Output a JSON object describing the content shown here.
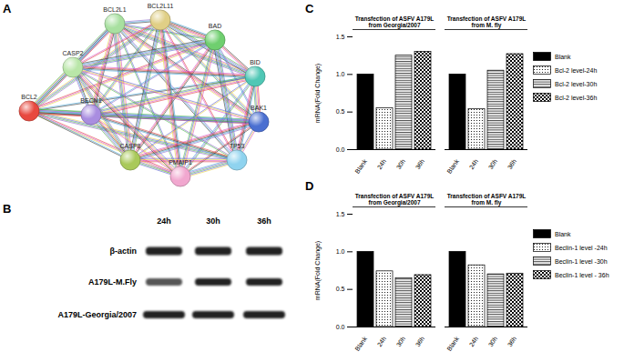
{
  "panels": {
    "A": {
      "letter": "A",
      "nodes": [
        {
          "label": "BCL2",
          "color": "#e8493f"
        },
        {
          "label": "BCL2L1",
          "color": "#a8e0a0"
        },
        {
          "label": "BCL2L11",
          "color": "#e0cf86"
        },
        {
          "label": "BAD",
          "color": "#6fcf6f"
        },
        {
          "label": "BID",
          "color": "#4fc7b5"
        },
        {
          "label": "BAK1",
          "color": "#4a6fd1"
        },
        {
          "label": "TP53",
          "color": "#8fd3ef"
        },
        {
          "label": "PMAIP1",
          "color": "#f1a7cf"
        },
        {
          "label": "CASP8",
          "color": "#a9c95a"
        },
        {
          "label": "BECN1",
          "color": "#a98de0"
        },
        {
          "label": "CASP2",
          "color": "#b9e6a8"
        }
      ],
      "edges": {
        "BCL2": [
          "BCL2L1",
          "BCL2L11",
          "BAD",
          "BID",
          "BAK1",
          "TP53",
          "PMAIP1",
          "CASP8",
          "BECN1",
          "CASP2"
        ],
        "BCL2L1": [
          "BCL2L11",
          "BAD",
          "BID",
          "BAK1",
          "TP53",
          "PMAIP1",
          "CASP8",
          "BECN1",
          "CASP2"
        ],
        "BCL2L11": [
          "BAD",
          "BID",
          "BAK1",
          "TP53",
          "PMAIP1",
          "CASP8",
          "BECN1",
          "CASP2"
        ],
        "BAD": [
          "BID",
          "BAK1",
          "TP53",
          "PMAIP1",
          "CASP8",
          "BECN1",
          "CASP2"
        ],
        "BID": [
          "BAK1",
          "TP53",
          "PMAIP1",
          "CASP8",
          "BECN1",
          "CASP2"
        ],
        "BAK1": [
          "TP53",
          "PMAIP1",
          "CASP8",
          "BECN1",
          "CASP2"
        ],
        "TP53": [
          "PMAIP1",
          "CASP8",
          "BECN1",
          "CASP2"
        ],
        "PMAIP1": [
          "CASP8",
          "BECN1",
          "CASP2"
        ],
        "CASP8": [
          "BECN1",
          "CASP2"
        ],
        "BECN1": [
          "CASP2"
        ]
      }
    },
    "B": {
      "letter": "B",
      "lanes": [
        "24h",
        "30h",
        "36h"
      ],
      "rows": [
        "β-actin",
        "A179L-M.Fly",
        "A179L-Georgia/2007"
      ]
    }
  },
  "chart_data": [
    {
      "panel_label": "C",
      "type": "bar",
      "y_label": "mRNA(Fold Change)",
      "categories": [
        "Blank",
        "24h",
        "30h",
        "36h",
        "Blank",
        "24h",
        "30h",
        "36h"
      ],
      "groups": [
        "Transfection of ASFV A179L from Georgia/2007",
        "Transfection of ASFV A179L from M. fly"
      ],
      "series": [
        {
          "name": "Blank",
          "color": "#000000",
          "values": [
            1,
            null,
            null,
            null,
            1,
            null,
            null,
            null
          ]
        },
        {
          "name": "Bcl-2 level-24h",
          "color": "#000000",
          "values": [
            null,
            0.55,
            null,
            null,
            null,
            0.54,
            null,
            null
          ]
        },
        {
          "name": "Bcl-2 level-30h",
          "color": "#000000",
          "values": [
            null,
            null,
            1.25,
            null,
            null,
            null,
            1.05,
            null
          ]
        },
        {
          "name": "Bcl-2 level-36h",
          "color": "#000000",
          "values": [
            null,
            null,
            null,
            1.3,
            null,
            null,
            null,
            1.27
          ]
        }
      ],
      "ylim": [
        0,
        1.5
      ],
      "yticks": [
        {
          "value": 0,
          "label": "0.0"
        },
        {
          "value": 0.5,
          "label": "0.5"
        },
        {
          "value": 1,
          "label": "1.0"
        },
        {
          "value": 1.5,
          "label": "1.5"
        }
      ],
      "legend": "right"
    },
    {
      "panel_label": "D",
      "type": "bar",
      "y_label": "mRNA(Fold Change)",
      "categories": [
        "Blank",
        "24h",
        "30h",
        "36h",
        "Blank",
        "24h",
        "30h",
        "36h"
      ],
      "groups": [
        "Transfection of ASFV A179L from Georgia/2007",
        "Transfection of ASFV A179L from M. fly"
      ],
      "series": [
        {
          "name": "Blank",
          "color": "#000000",
          "values": [
            1,
            null,
            null,
            null,
            1,
            null,
            null,
            null
          ]
        },
        {
          "name": "Beclin-1 level -24h",
          "color": "#000000",
          "values": [
            null,
            0.74,
            null,
            null,
            null,
            0.82,
            null,
            null
          ]
        },
        {
          "name": "Beclin-1 level -30h",
          "color": "#000000",
          "values": [
            null,
            null,
            0.65,
            null,
            null,
            null,
            0.7,
            null
          ]
        },
        {
          "name": "Beclin-1 level - 36h",
          "color": "#000000",
          "values": [
            null,
            null,
            null,
            0.69,
            null,
            null,
            null,
            0.71
          ]
        }
      ],
      "ylim": [
        0,
        1.5
      ],
      "yticks": [
        {
          "value": 0,
          "label": "0.0"
        },
        {
          "value": 0.5,
          "label": "0.5"
        },
        {
          "value": 1,
          "label": "1.0"
        },
        {
          "value": 1.5,
          "label": "1.5"
        }
      ],
      "legend": "right"
    }
  ]
}
